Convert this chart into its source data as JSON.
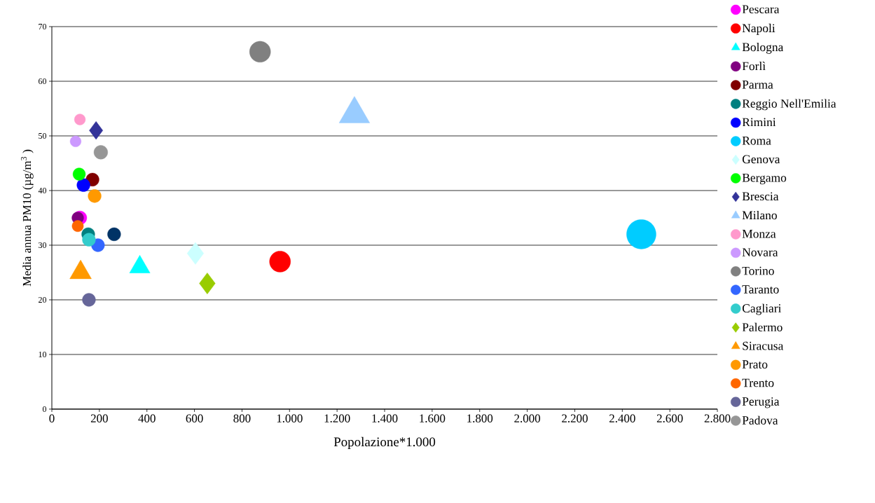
{
  "chart_data": {
    "type": "bubble",
    "xlabel": "Popolazione*1.000",
    "ylabel": "Media annua PM10 (µg/m$^{3}$ )",
    "xlim": [
      0,
      2800
    ],
    "ylim": [
      0,
      70
    ],
    "xticks": [
      0,
      200,
      400,
      600,
      800,
      {
        "value": 1000,
        "label": "1.000"
      },
      {
        "value": 1200,
        "label": "1.200"
      },
      {
        "value": 1400,
        "label": "1.400"
      },
      {
        "value": 1600,
        "label": "1.600"
      },
      {
        "value": 1800,
        "label": "1.800"
      },
      {
        "value": 2000,
        "label": "2.000"
      },
      {
        "value": 2200,
        "label": "2.200"
      },
      {
        "value": 2400,
        "label": "2.400"
      },
      {
        "value": 2600,
        "label": "2.600"
      },
      {
        "value": 2800,
        "label": "2.800"
      }
    ],
    "yticks": [
      0,
      10,
      20,
      30,
      40,
      50,
      60,
      70
    ],
    "grid": "y",
    "legend": "right",
    "series": [
      {
        "name": "Pescara",
        "color": "#ff00ff",
        "marker": "circle",
        "x": [
          118
        ],
        "values": [
          35
        ],
        "sizes": [
          0.22
        ]
      },
      {
        "name": "Napoli",
        "color": "#ff0000",
        "marker": "circle",
        "x": [
          960
        ],
        "values": [
          27
        ],
        "sizes": [
          0.51
        ]
      },
      {
        "name": "Bologna",
        "color": "#00ffff",
        "marker": "triangle",
        "x": [
          370
        ],
        "values": [
          26
        ],
        "sizes": [
          0.27
        ]
      },
      {
        "name": "Forlì",
        "color": "#800080",
        "marker": "circle",
        "x": [
          109
        ],
        "values": [
          35
        ],
        "sizes": [
          0.16
        ]
      },
      {
        "name": "Parma",
        "color": "#800000",
        "marker": "circle",
        "x": [
          171
        ],
        "values": [
          42
        ],
        "sizes": [
          0.2
        ]
      },
      {
        "name": "Reggio Nell'Emilia",
        "color": "#008080",
        "marker": "circle",
        "x": [
          153
        ],
        "values": [
          32
        ],
        "sizes": [
          0.2
        ]
      },
      {
        "name": "Rimini",
        "color": "#0000ff",
        "marker": "circle",
        "x": [
          133
        ],
        "values": [
          41
        ],
        "sizes": [
          0.2
        ]
      },
      {
        "name": "Roma",
        "color": "#00ccff",
        "marker": "circle",
        "x": [
          2480
        ],
        "values": [
          32
        ],
        "sizes": [
          1
        ]
      },
      {
        "name": "Genova",
        "color": "#ccffff",
        "marker": "diamond",
        "x": [
          604
        ],
        "values": [
          28.5
        ],
        "sizes": [
          0.27
        ]
      },
      {
        "name": "Bergamo",
        "color": "#00ff00",
        "marker": "circle",
        "x": [
          115
        ],
        "values": [
          43
        ],
        "sizes": [
          0.18
        ]
      },
      {
        "name": "Brescia",
        "color": "#333399",
        "marker": "diamond",
        "x": [
          186
        ],
        "values": [
          51
        ],
        "sizes": [
          0.18
        ]
      },
      {
        "name": "Milano",
        "color": "#99ccff",
        "marker": "triangle",
        "x": [
          1273
        ],
        "values": [
          54
        ],
        "sizes": [
          0.6
        ]
      },
      {
        "name": "Monza",
        "color": "#ff99cc",
        "marker": "circle",
        "x": [
          118
        ],
        "values": [
          53
        ],
        "sizes": [
          0.14
        ]
      },
      {
        "name": "Novara",
        "color": "#cc99ff",
        "marker": "circle",
        "x": [
          100
        ],
        "values": [
          49
        ],
        "sizes": [
          0.14
        ]
      },
      {
        "name": "Torino",
        "color": "#808080",
        "marker": "circle",
        "x": [
          876
        ],
        "values": [
          65.4
        ],
        "sizes": [
          0.51
        ]
      },
      {
        "name": "Taranto",
        "color": "#3366ff",
        "marker": "circle",
        "x": [
          194
        ],
        "values": [
          30
        ],
        "sizes": [
          0.2
        ]
      },
      {
        "name": "Cagliari",
        "color": "#33cccc",
        "marker": "circle",
        "x": [
          156
        ],
        "values": [
          31
        ],
        "sizes": [
          0.2
        ]
      },
      {
        "name": "Palermo",
        "color": "#99cc00",
        "marker": "diamond",
        "x": [
          654
        ],
        "values": [
          23
        ],
        "sizes": [
          0.25
        ]
      },
      {
        "name": "Siracusa",
        "color": "#ff9900",
        "marker": "triangle",
        "x": [
          121
        ],
        "values": [
          25
        ],
        "sizes": [
          0.3
        ]
      },
      {
        "name": "Prato",
        "color": "#ff9900",
        "marker": "circle",
        "x": [
          180
        ],
        "values": [
          39
        ],
        "sizes": [
          0.2
        ]
      },
      {
        "name": "Trento",
        "color": "#ff6600",
        "marker": "circle",
        "x": [
          109
        ],
        "values": [
          33.5
        ],
        "sizes": [
          0.15
        ]
      },
      {
        "name": "Perugia",
        "color": "#666699",
        "marker": "circle",
        "x": [
          156
        ],
        "values": [
          20
        ],
        "sizes": [
          0.2
        ]
      },
      {
        "name": "Padova",
        "color": "#969696",
        "marker": "circle",
        "x": [
          206
        ],
        "values": [
          47
        ],
        "sizes": [
          0.22
        ]
      },
      {
        "color": "#003366",
        "marker": "circle",
        "x": [
          262
        ],
        "values": [
          32
        ],
        "sizes": [
          0.2
        ]
      }
    ]
  }
}
